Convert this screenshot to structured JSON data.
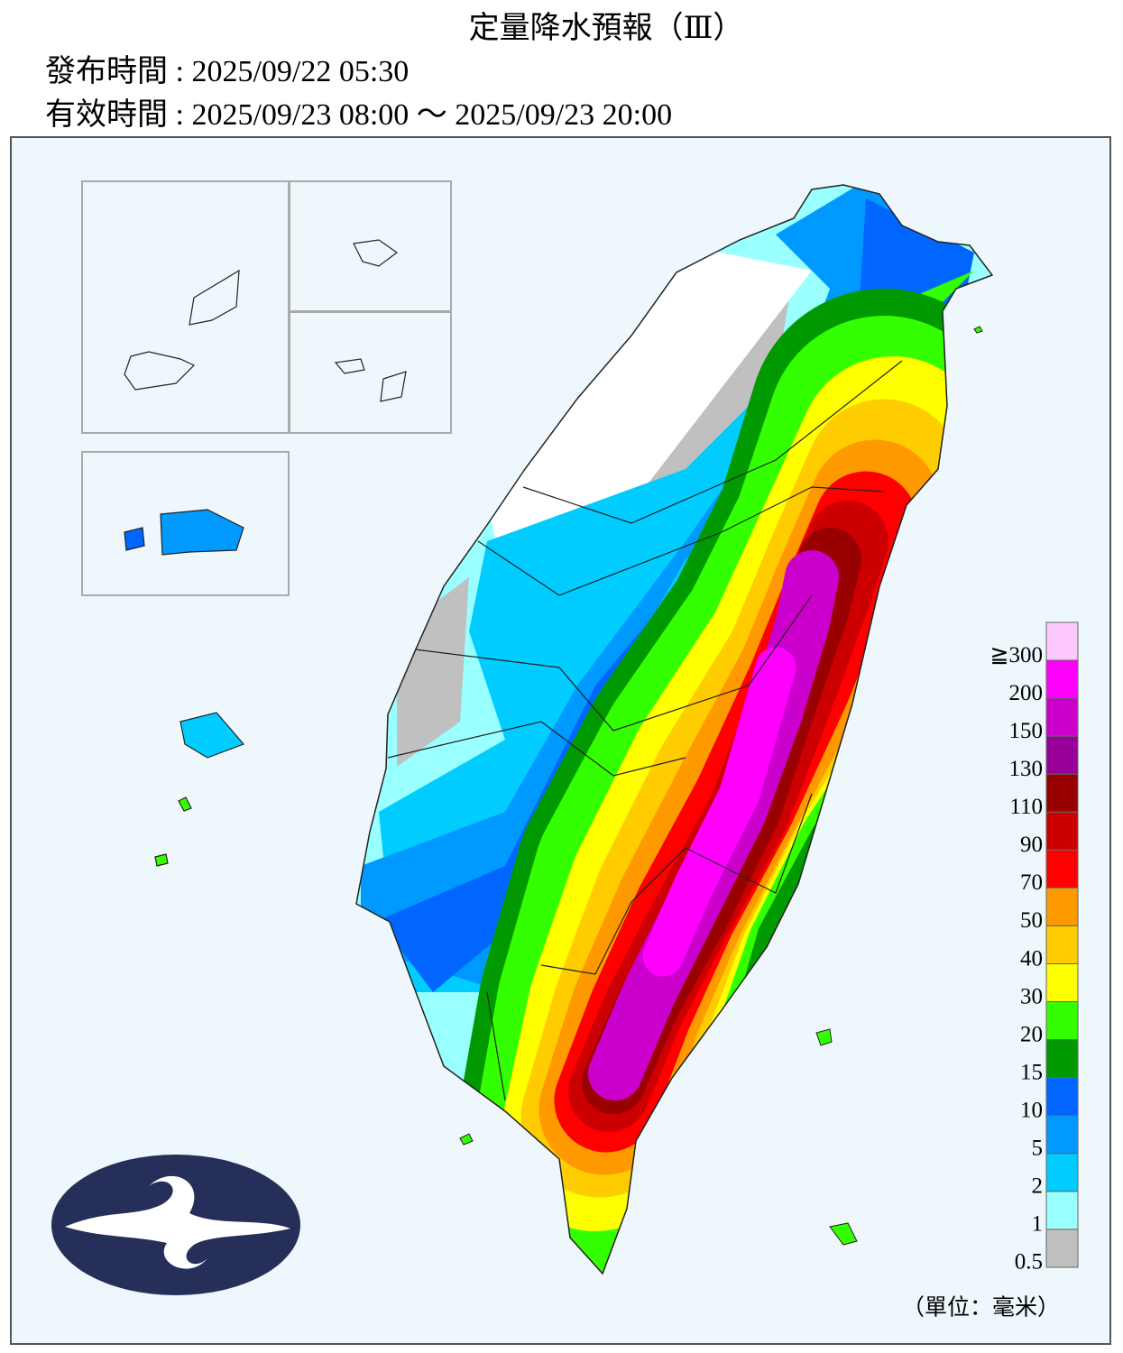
{
  "header": {
    "title": "定量降水預報（Ⅲ）",
    "issued": "發布時間 : 2025/09/22 05:30",
    "valid": "有效時間 : 2025/09/23 08:00 ～ 2025/09/23 20:00"
  },
  "legend": {
    "unit": "（單位：毫米）",
    "levels": [
      {
        "label": "≧300",
        "color": "#fdc9fd"
      },
      {
        "label": "200",
        "color": "#ff00ff"
      },
      {
        "label": "150",
        "color": "#cc00cc"
      },
      {
        "label": "130",
        "color": "#990099"
      },
      {
        "label": "110",
        "color": "#990000"
      },
      {
        "label": "90",
        "color": "#cc0000"
      },
      {
        "label": "70",
        "color": "#ff0000"
      },
      {
        "label": "50",
        "color": "#ff9900"
      },
      {
        "label": "40",
        "color": "#ffcc00"
      },
      {
        "label": "30",
        "color": "#ffff00"
      },
      {
        "label": "20",
        "color": "#33ff00"
      },
      {
        "label": "15",
        "color": "#009900"
      },
      {
        "label": "10",
        "color": "#0066ff"
      },
      {
        "label": "5",
        "color": "#0099ff"
      },
      {
        "label": "2",
        "color": "#00ccff"
      },
      {
        "label": "1",
        "color": "#99ffff"
      },
      {
        "label": "0.5",
        "color": "#c0c0c0"
      }
    ]
  }
}
